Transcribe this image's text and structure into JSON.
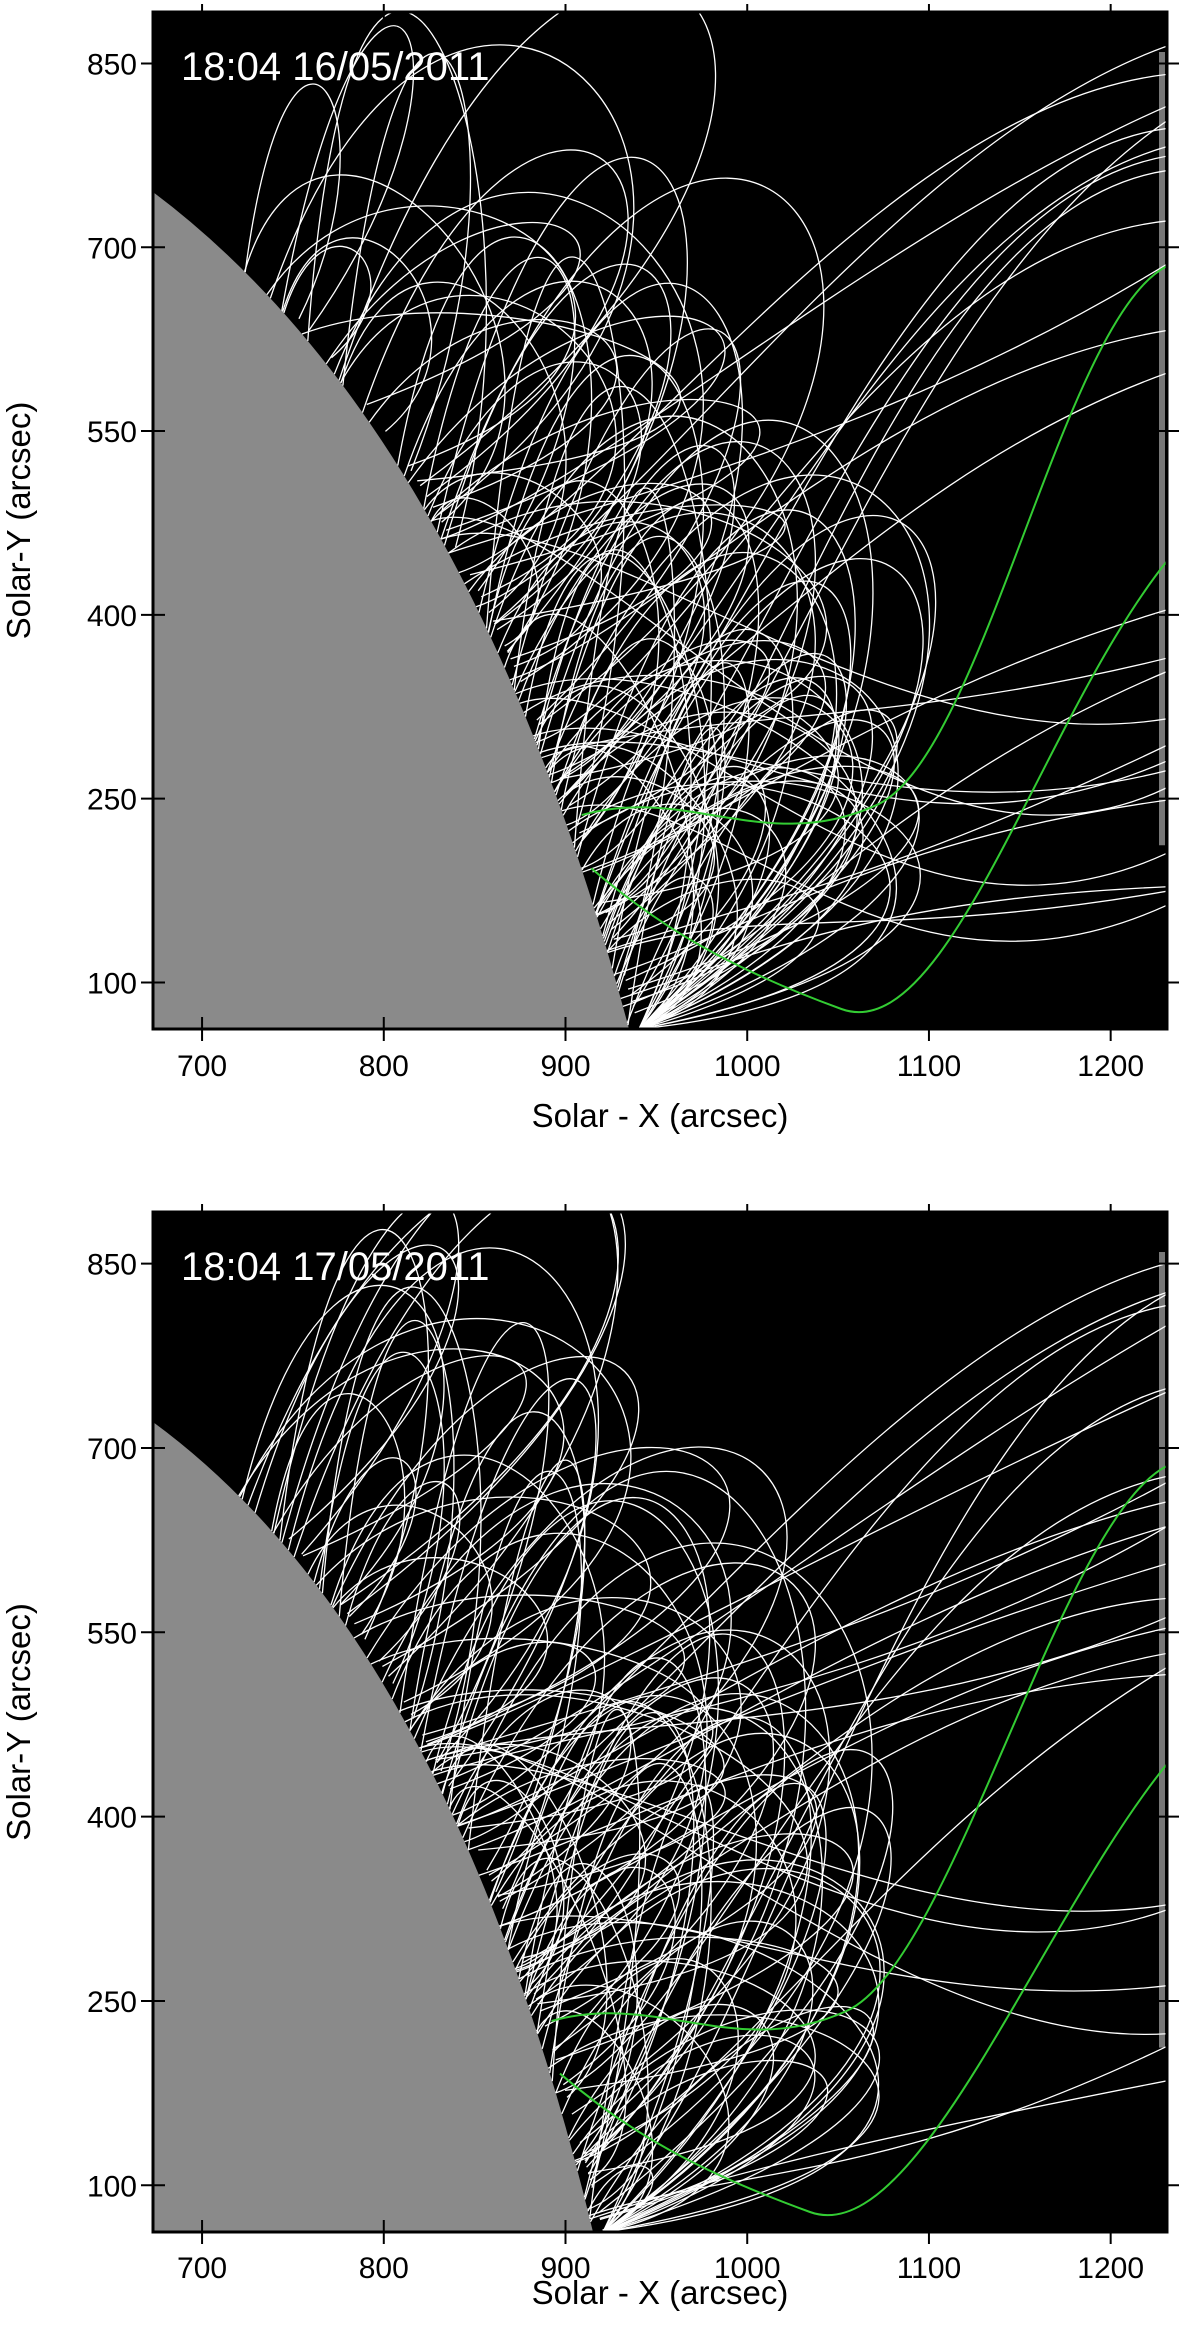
{
  "chart_data": [
    {
      "type": "image",
      "annotation": "18:04 16/05/2011",
      "xlabel": "Solar - X (arcsec)",
      "ylabel": "Solar-Y (arcsec)",
      "xlim": [
        673,
        1231
      ],
      "ylim": [
        62,
        892
      ],
      "xticks": [
        700,
        800,
        900,
        1000,
        1100,
        1200
      ],
      "yticks": [
        100,
        250,
        400,
        550,
        700,
        850
      ]
    },
    {
      "type": "image",
      "annotation": "18:04 17/05/2011",
      "xlabel": "Solar - X (arcsec)",
      "ylabel": "Solar-Y (arcsec)",
      "xlim": [
        673,
        1231
      ],
      "ylim": [
        62,
        892
      ],
      "xticks": [
        700,
        800,
        900,
        1000,
        1100,
        1200
      ],
      "yticks": [
        100,
        250,
        400,
        550,
        700,
        850
      ]
    }
  ]
}
